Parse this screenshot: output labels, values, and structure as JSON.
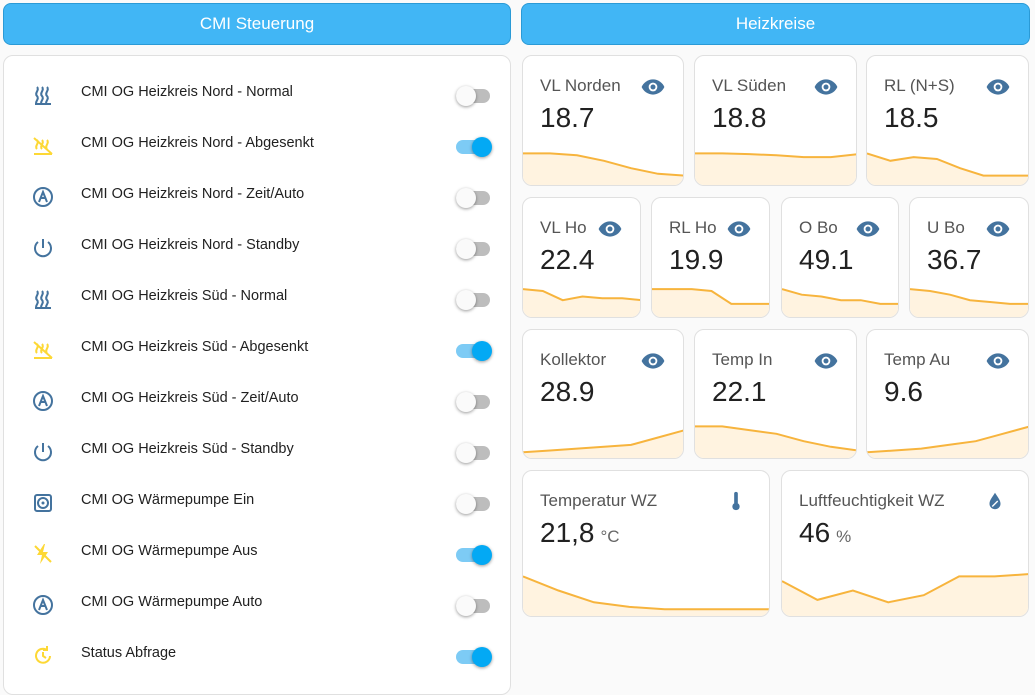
{
  "header_left": {
    "title": "CMI Steuerung"
  },
  "header_right": {
    "title": "Heizkreise"
  },
  "switches": [
    {
      "label": "CMI OG Heizkreis Nord - Normal",
      "on": false
    },
    {
      "label": "CMI OG Heizkreis Nord - Abgesenkt",
      "on": true
    },
    {
      "label": "CMI OG Heizkreis Nord - Zeit/Auto",
      "on": false
    },
    {
      "label": "CMI OG Heizkreis Nord - Standby",
      "on": false
    },
    {
      "label": "CMI OG Heizkreis Süd - Normal",
      "on": false
    },
    {
      "label": "CMI OG Heizkreis Süd - Abgesenkt",
      "on": true
    },
    {
      "label": "CMI OG Heizkreis Süd - Zeit/Auto",
      "on": false
    },
    {
      "label": "CMI OG Heizkreis Süd - Standby",
      "on": false
    },
    {
      "label": "CMI OG Wärmepumpe Ein",
      "on": false
    },
    {
      "label": "CMI OG Wärmepumpe Aus",
      "on": true
    },
    {
      "label": "CMI OG Wärmepumpe Auto",
      "on": false
    },
    {
      "label": "Status Abfrage",
      "on": true
    }
  ],
  "sensors": [
    {
      "name": "VL Norden",
      "value": 18.7
    },
    {
      "name": "VL Süden",
      "value": 18.8
    },
    {
      "name": "RL (N+S)",
      "value": 18.5
    },
    {
      "name": "VL Ho",
      "value": 22.4
    },
    {
      "name": "RL Ho",
      "value": 19.9
    },
    {
      "name": "O Bo",
      "value": 49.1
    },
    {
      "name": "U Bo",
      "value": 36.7
    },
    {
      "name": "Kollektor",
      "value": 28.9
    },
    {
      "name": "Temp In",
      "value": 22.1
    },
    {
      "name": "Temp Au",
      "value": 9.6
    },
    {
      "name": "Temperatur WZ",
      "value": "21,8",
      "unit": "°C"
    },
    {
      "name": "Luftfeuchtigkeit WZ",
      "value": 46,
      "unit": "%"
    }
  ]
}
